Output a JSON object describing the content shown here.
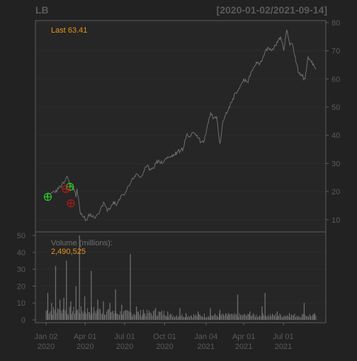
{
  "header": {
    "ticker": "LB",
    "date_range": "[2020-01-02/2021-09-14]",
    "last_prefix": "Last",
    "last_value": "63.41"
  },
  "volume_panel": {
    "label": "Volume (millions):",
    "value": "2,490,525"
  },
  "colors": {
    "background": "#222222",
    "panel": "#262626",
    "frame": "#5c5c5c",
    "grid": "#2c2c2c",
    "price_line": "#6e6e6e",
    "volume_bar": "#6e6e6e",
    "label": "#5a5a5a",
    "accent": "#e6931c",
    "buy_marker": "#22cc22",
    "sell_marker": "#b01818"
  },
  "chart_data": [
    {
      "type": "line",
      "title": "LB",
      "subtitle": "[2020-01-02/2021-09-14]",
      "x_range": [
        "2020-01-02",
        "2021-09-14"
      ],
      "ylim": [
        5,
        80
      ],
      "y_ticks": [
        10,
        20,
        30,
        40,
        50,
        60,
        70,
        80
      ],
      "x_ticks": [
        "Jan 02\n2020",
        "Apr 01\n2020",
        "Jul 01\n2020",
        "Oct 01\n2020",
        "Jan 04\n2021",
        "Apr 01\n2021",
        "Jul 01\n2021"
      ],
      "x_tick_dates": [
        "2020-01-02",
        "2020-04-01",
        "2020-07-01",
        "2020-10-01",
        "2021-01-04",
        "2021-04-01",
        "2021-07-01"
      ],
      "grid": true,
      "series": [
        {
          "x": [
            "2020-01-02",
            "2020-01-15",
            "2020-01-31",
            "2020-02-14",
            "2020-02-21",
            "2020-02-28",
            "2020-03-06",
            "2020-03-11",
            "2020-03-13",
            "2020-03-18",
            "2020-03-20",
            "2020-03-27",
            "2020-04-03",
            "2020-04-09",
            "2020-04-17",
            "2020-04-24",
            "2020-05-01",
            "2020-05-08",
            "2020-05-15",
            "2020-05-22",
            "2020-05-29",
            "2020-06-05",
            "2020-06-12",
            "2020-06-19",
            "2020-06-26",
            "2020-07-02",
            "2020-07-10",
            "2020-07-17",
            "2020-07-24",
            "2020-07-31",
            "2020-08-07",
            "2020-08-14",
            "2020-08-21",
            "2020-08-28",
            "2020-09-04",
            "2020-09-11",
            "2020-09-18",
            "2020-09-25",
            "2020-10-02",
            "2020-10-09",
            "2020-10-16",
            "2020-10-23",
            "2020-10-30",
            "2020-11-06",
            "2020-11-13",
            "2020-11-20",
            "2020-11-27",
            "2020-12-04",
            "2020-12-11",
            "2020-12-18",
            "2020-12-24",
            "2020-12-31",
            "2021-01-08",
            "2021-01-15",
            "2021-01-22",
            "2021-01-29",
            "2021-02-05",
            "2021-02-12",
            "2021-02-19",
            "2021-02-26",
            "2021-03-05",
            "2021-03-12",
            "2021-03-19",
            "2021-03-26",
            "2021-04-01",
            "2021-04-09",
            "2021-04-16",
            "2021-04-23",
            "2021-04-30",
            "2021-05-07",
            "2021-05-14",
            "2021-05-21",
            "2021-05-28",
            "2021-06-04",
            "2021-06-11",
            "2021-06-18",
            "2021-06-25",
            "2021-07-02",
            "2021-07-09",
            "2021-07-16",
            "2021-07-23",
            "2021-07-30",
            "2021-08-06",
            "2021-08-13",
            "2021-08-20",
            "2021-08-27",
            "2021-09-03",
            "2021-09-10",
            "2021-09-14"
          ],
          "y": [
            18.5,
            19.5,
            21,
            23.5,
            25,
            22,
            21,
            18,
            21,
            16,
            13,
            11,
            10,
            12,
            11,
            10.5,
            12,
            14.5,
            16,
            13,
            14,
            16.5,
            15,
            17,
            19,
            19.5,
            22,
            24,
            25.5,
            26,
            25,
            27,
            29,
            28,
            28.5,
            30,
            31,
            30,
            31.5,
            32,
            32.5,
            33,
            34,
            34.5,
            35.5,
            40,
            39.5,
            41,
            40.5,
            39,
            37.5,
            38,
            44,
            48,
            46,
            46.5,
            37,
            45,
            48,
            50,
            52,
            55,
            56,
            58,
            60,
            59,
            61,
            64,
            66,
            65,
            67,
            70,
            71,
            70,
            72,
            73,
            75,
            70,
            77.5,
            72,
            72,
            66,
            62,
            61,
            60,
            68,
            66,
            64.5,
            63.41
          ]
        }
      ],
      "markers": [
        {
          "type": "buy",
          "x": "2020-01-06",
          "y": 18.1
        },
        {
          "type": "buy",
          "x": "2020-02-26",
          "y": 21.7
        },
        {
          "type": "sell",
          "x": "2020-02-17",
          "y": 20.9
        },
        {
          "type": "sell",
          "x": "2020-02-28",
          "y": 15.8
        }
      ],
      "annotations": [
        "Last 63.41"
      ]
    },
    {
      "type": "bar",
      "ylabel": "Volume (millions):",
      "ylim": [
        0,
        52
      ],
      "y_ticks": [
        0,
        10,
        20,
        30,
        40,
        50
      ],
      "grid": true,
      "series": [
        {
          "x": [
            "2020-01-06",
            "2020-01-15",
            "2020-01-24",
            "2020-02-03",
            "2020-02-12",
            "2020-02-18",
            "2020-02-28",
            "2020-03-11",
            "2020-03-19",
            "2020-03-31",
            "2020-04-15",
            "2020-04-30",
            "2020-05-13",
            "2020-05-28",
            "2020-06-10",
            "2020-06-24",
            "2020-07-14",
            "2020-07-28",
            "2020-08-13",
            "2020-09-10",
            "2020-10-08",
            "2020-11-05",
            "2020-11-19",
            "2020-12-17",
            "2021-01-14",
            "2021-02-05",
            "2021-02-25",
            "2021-03-18",
            "2021-04-15",
            "2021-05-13",
            "2021-05-20",
            "2021-06-17",
            "2021-07-15",
            "2021-08-18",
            "2021-09-10"
          ],
          "values": [
            16,
            10,
            32,
            12,
            13,
            35,
            11,
            20,
            50,
            14,
            29,
            12,
            11,
            10,
            18,
            9,
            39,
            8,
            6,
            7,
            5,
            7,
            4,
            5,
            7,
            6,
            4,
            15,
            5,
            8,
            16,
            5,
            4,
            10,
            3
          ]
        }
      ]
    }
  ]
}
